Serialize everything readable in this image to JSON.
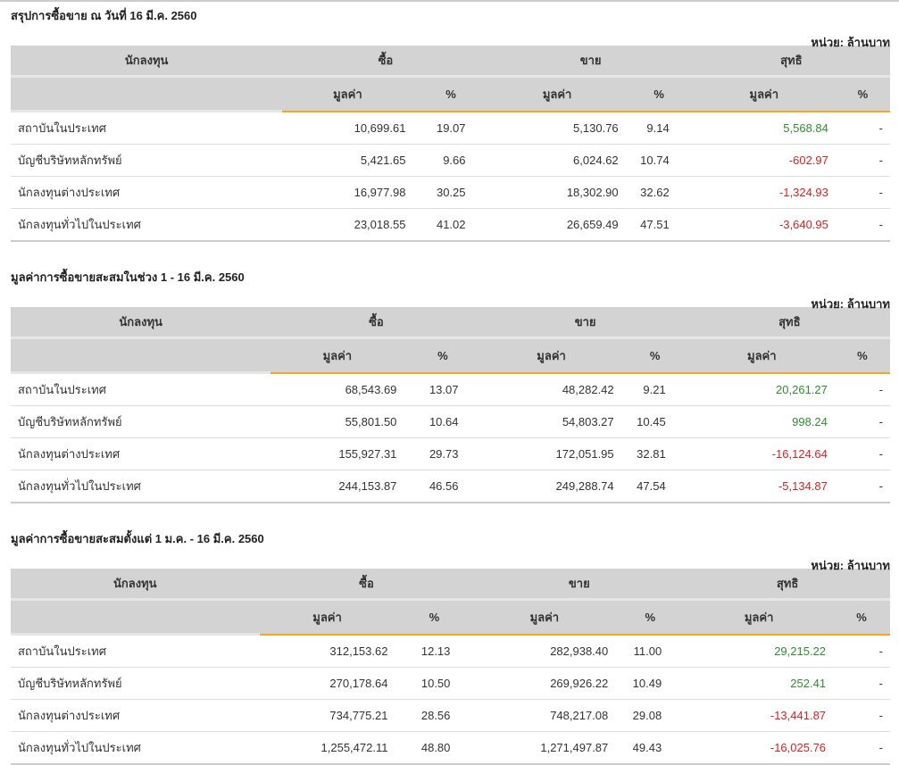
{
  "unit_label": "หน่วย: ล้านบาท",
  "headers": {
    "investor": "นักลงทุน",
    "buy": "ซื้อ",
    "sell": "ขาย",
    "net": "สุทธิ",
    "value": "มูลค่า",
    "pct": "%"
  },
  "colors": {
    "positive": "#2f8f2f",
    "negative": "#e02020",
    "accent": "#f5a623",
    "header_bg": "#d3d3d3"
  },
  "sections": [
    {
      "title": "สรุปการซื้อขาย ณ วันที่ 16 มี.ค. 2560",
      "rows": [
        {
          "name": "สถาบันในประเทศ",
          "buy": "10,699.61",
          "buy_pct": "19.07",
          "sell": "5,130.76",
          "sell_pct": "9.14",
          "net": "5,568.84",
          "net_pct": "-"
        },
        {
          "name": "บัญชีบริษัทหลักทรัพย์",
          "buy": "5,421.65",
          "buy_pct": "9.66",
          "sell": "6,024.62",
          "sell_pct": "10.74",
          "net": "-602.97",
          "net_pct": "-"
        },
        {
          "name": "นักลงทุนต่างประเทศ",
          "buy": "16,977.98",
          "buy_pct": "30.25",
          "sell": "18,302.90",
          "sell_pct": "32.62",
          "net": "-1,324.93",
          "net_pct": "-"
        },
        {
          "name": "นักลงทุนทั่วไปในประเทศ",
          "buy": "23,018.55",
          "buy_pct": "41.02",
          "sell": "26,659.49",
          "sell_pct": "47.51",
          "net": "-3,640.95",
          "net_pct": "-"
        }
      ]
    },
    {
      "title": "มูลค่าการซื้อขายสะสมในช่วง 1 - 16 มี.ค. 2560",
      "rows": [
        {
          "name": "สถาบันในประเทศ",
          "buy": "68,543.69",
          "buy_pct": "13.07",
          "sell": "48,282.42",
          "sell_pct": "9.21",
          "net": "20,261.27",
          "net_pct": "-"
        },
        {
          "name": "บัญชีบริษัทหลักทรัพย์",
          "buy": "55,801.50",
          "buy_pct": "10.64",
          "sell": "54,803.27",
          "sell_pct": "10.45",
          "net": "998.24",
          "net_pct": "-"
        },
        {
          "name": "นักลงทุนต่างประเทศ",
          "buy": "155,927.31",
          "buy_pct": "29.73",
          "sell": "172,051.95",
          "sell_pct": "32.81",
          "net": "-16,124.64",
          "net_pct": "-"
        },
        {
          "name": "นักลงทุนทั่วไปในประเทศ",
          "buy": "244,153.87",
          "buy_pct": "46.56",
          "sell": "249,288.74",
          "sell_pct": "47.54",
          "net": "-5,134.87",
          "net_pct": "-"
        }
      ]
    },
    {
      "title": "มูลค่าการซื้อขายสะสมตั้งแต่ 1 ม.ค. - 16 มี.ค. 2560",
      "rows": [
        {
          "name": "สถาบันในประเทศ",
          "buy": "312,153.62",
          "buy_pct": "12.13",
          "sell": "282,938.40",
          "sell_pct": "11.00",
          "net": "29,215.22",
          "net_pct": "-"
        },
        {
          "name": "บัญชีบริษัทหลักทรัพย์",
          "buy": "270,178.64",
          "buy_pct": "10.50",
          "sell": "269,926.22",
          "sell_pct": "10.49",
          "net": "252.41",
          "net_pct": "-"
        },
        {
          "name": "นักลงทุนต่างประเทศ",
          "buy": "734,775.21",
          "buy_pct": "28.56",
          "sell": "748,217.08",
          "sell_pct": "29.08",
          "net": "-13,441.87",
          "net_pct": "-"
        },
        {
          "name": "นักลงทุนทั่วไปในประเทศ",
          "buy": "1,255,472.11",
          "buy_pct": "48.80",
          "sell": "1,271,497.87",
          "sell_pct": "49.43",
          "net": "-16,025.76",
          "net_pct": "-"
        }
      ]
    }
  ]
}
